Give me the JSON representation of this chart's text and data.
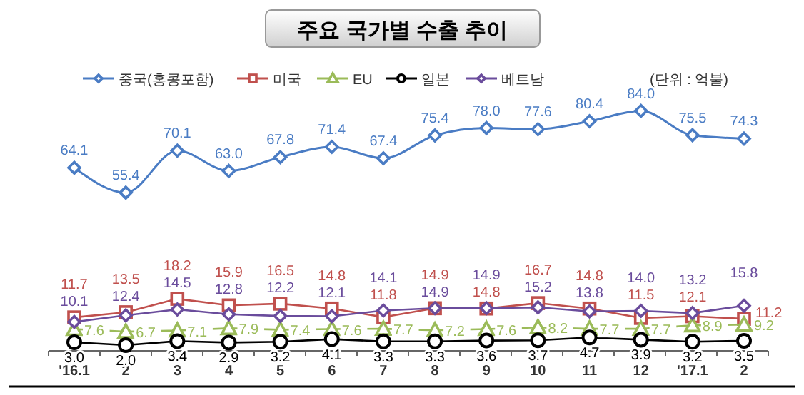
{
  "chart_data": {
    "type": "line",
    "title": "주요 국가별 수출 추이",
    "annotations": [
      "(단위 : 억불)"
    ],
    "categories": [
      "'16.1",
      "2",
      "3",
      "4",
      "5",
      "6",
      "7",
      "8",
      "9",
      "10",
      "11",
      "12",
      "'17.1",
      "2"
    ],
    "tick_labels": "x",
    "legend": "top",
    "grid": false,
    "series": [
      {
        "name": "중국(홍콩포함)",
        "color": "#4a7cc4",
        "marker": "diamond",
        "values": [
          64.1,
          55.4,
          70.1,
          63.0,
          67.8,
          71.4,
          67.4,
          75.4,
          78.0,
          77.6,
          80.4,
          84.0,
          75.5,
          74.3
        ],
        "value_labels": [
          "64.1",
          "55.4",
          "70.1",
          "63.0",
          "67.8",
          "71.4",
          "67.4",
          "75.4",
          "78.0",
          "77.6",
          "80.4",
          "84.0",
          "75.5",
          "74.3"
        ]
      },
      {
        "name": "미국",
        "color": "#c0504d",
        "marker": "square",
        "values": [
          11.7,
          13.5,
          18.2,
          15.9,
          16.5,
          14.8,
          11.8,
          14.9,
          14.8,
          16.7,
          14.8,
          11.5,
          12.1,
          11.2
        ],
        "value_labels": [
          "11.7",
          "13.5",
          "18.2",
          "15.9",
          "16.5",
          "14.8",
          "11.8",
          "14.9",
          "14.8",
          "16.7",
          "14.8",
          "11.5",
          "12.1",
          "11.2"
        ]
      },
      {
        "name": "EU",
        "color": "#9bbb59",
        "marker": "triangle",
        "values": [
          7.6,
          6.7,
          7.1,
          7.9,
          7.4,
          7.6,
          7.7,
          7.2,
          7.6,
          8.2,
          7.7,
          7.7,
          8.9,
          9.2
        ],
        "value_labels": [
          "7.6",
          "6.7",
          "7.1",
          "7.9",
          "7.4",
          "7.6",
          "7.7",
          "7.2",
          "7.6",
          "8.2",
          "7.7",
          "7.7",
          "8.9",
          "9.2"
        ]
      },
      {
        "name": "일본",
        "color": "#000000",
        "marker": "circle",
        "values": [
          3.0,
          2.0,
          3.4,
          2.9,
          3.2,
          4.1,
          3.3,
          3.3,
          3.6,
          3.7,
          4.7,
          3.9,
          3.2,
          3.5
        ],
        "value_labels": [
          "3.0",
          "2.0",
          "3.4",
          "2.9",
          "3.2",
          "4.1",
          "3.3",
          "3.3",
          "3.6",
          "3.7",
          "4.7",
          "3.9",
          "3.2",
          "3.5"
        ]
      },
      {
        "name": "베트남",
        "color": "#6a4c9c",
        "marker": "diamond",
        "values": [
          10.1,
          12.4,
          14.5,
          12.8,
          12.2,
          12.1,
          14.1,
          14.9,
          14.9,
          15.2,
          13.8,
          14.0,
          13.2,
          15.8
        ],
        "value_labels": [
          "10.1",
          "12.4",
          "14.5",
          "12.8",
          "12.2",
          "12.1",
          "14.1",
          "14.9",
          "14.9",
          "15.2",
          "13.8",
          "14.0",
          "13.2",
          "15.8"
        ]
      }
    ]
  }
}
